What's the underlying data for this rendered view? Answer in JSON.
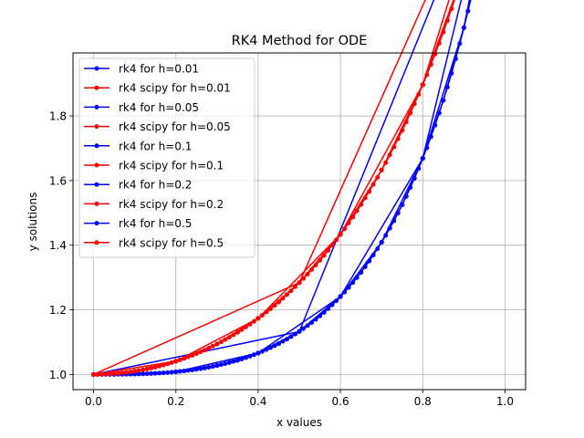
{
  "chart_data": {
    "type": "line",
    "title": "RK4 Method for ODE",
    "xlabel": "x values",
    "ylabel": "y solutions",
    "xlim": [
      -0.05,
      1.05
    ],
    "ylim": [
      0.953,
      1.995
    ],
    "xticks": [
      0.0,
      0.2,
      0.4,
      0.6,
      0.8,
      1.0
    ],
    "xtick_labels": [
      "0.0",
      "0.2",
      "0.4",
      "0.6",
      "0.8",
      "1.0"
    ],
    "yticks": [
      1.0,
      1.2,
      1.4,
      1.6,
      1.8
    ],
    "ytick_labels": [
      "1.0",
      "1.2",
      "1.4",
      "1.6",
      "1.8"
    ],
    "grid": true,
    "legend_position": "upper-left",
    "colors": {
      "blue": "#0000ff",
      "red": "#ff0000"
    },
    "series": [
      {
        "name": "rk4 for h=0.01",
        "color": "#0000ff",
        "h": 0.01,
        "marker": "dot"
      },
      {
        "name": "rk4 scipy for h=0.01",
        "color": "#ff0000",
        "h": 0.01,
        "marker": "dot"
      },
      {
        "name": "rk4 for h=0.05",
        "color": "#0000ff",
        "h": 0.05,
        "marker": "dot"
      },
      {
        "name": "rk4 scipy for h=0.05",
        "color": "#ff0000",
        "h": 0.05,
        "marker": "dot"
      },
      {
        "name": "rk4 for h=0.1",
        "color": "#0000ff",
        "h": 0.1,
        "marker": "dot"
      },
      {
        "name": "rk4 scipy for h=0.1",
        "color": "#ff0000",
        "h": 0.1,
        "marker": "dot"
      },
      {
        "name": "rk4 for h=0.2",
        "color": "#0000ff",
        "h": 0.2,
        "marker": "dot"
      },
      {
        "name": "rk4 scipy for h=0.2",
        "color": "#ff0000",
        "h": 0.2,
        "marker": "dot"
      },
      {
        "name": "rk4 for h=0.5",
        "color": "#0000ff",
        "h": 0.5,
        "marker": "dot"
      },
      {
        "name": "rk4 scipy for h=0.5",
        "color": "#ff0000",
        "h": 0.5,
        "marker": "dot"
      }
    ]
  }
}
